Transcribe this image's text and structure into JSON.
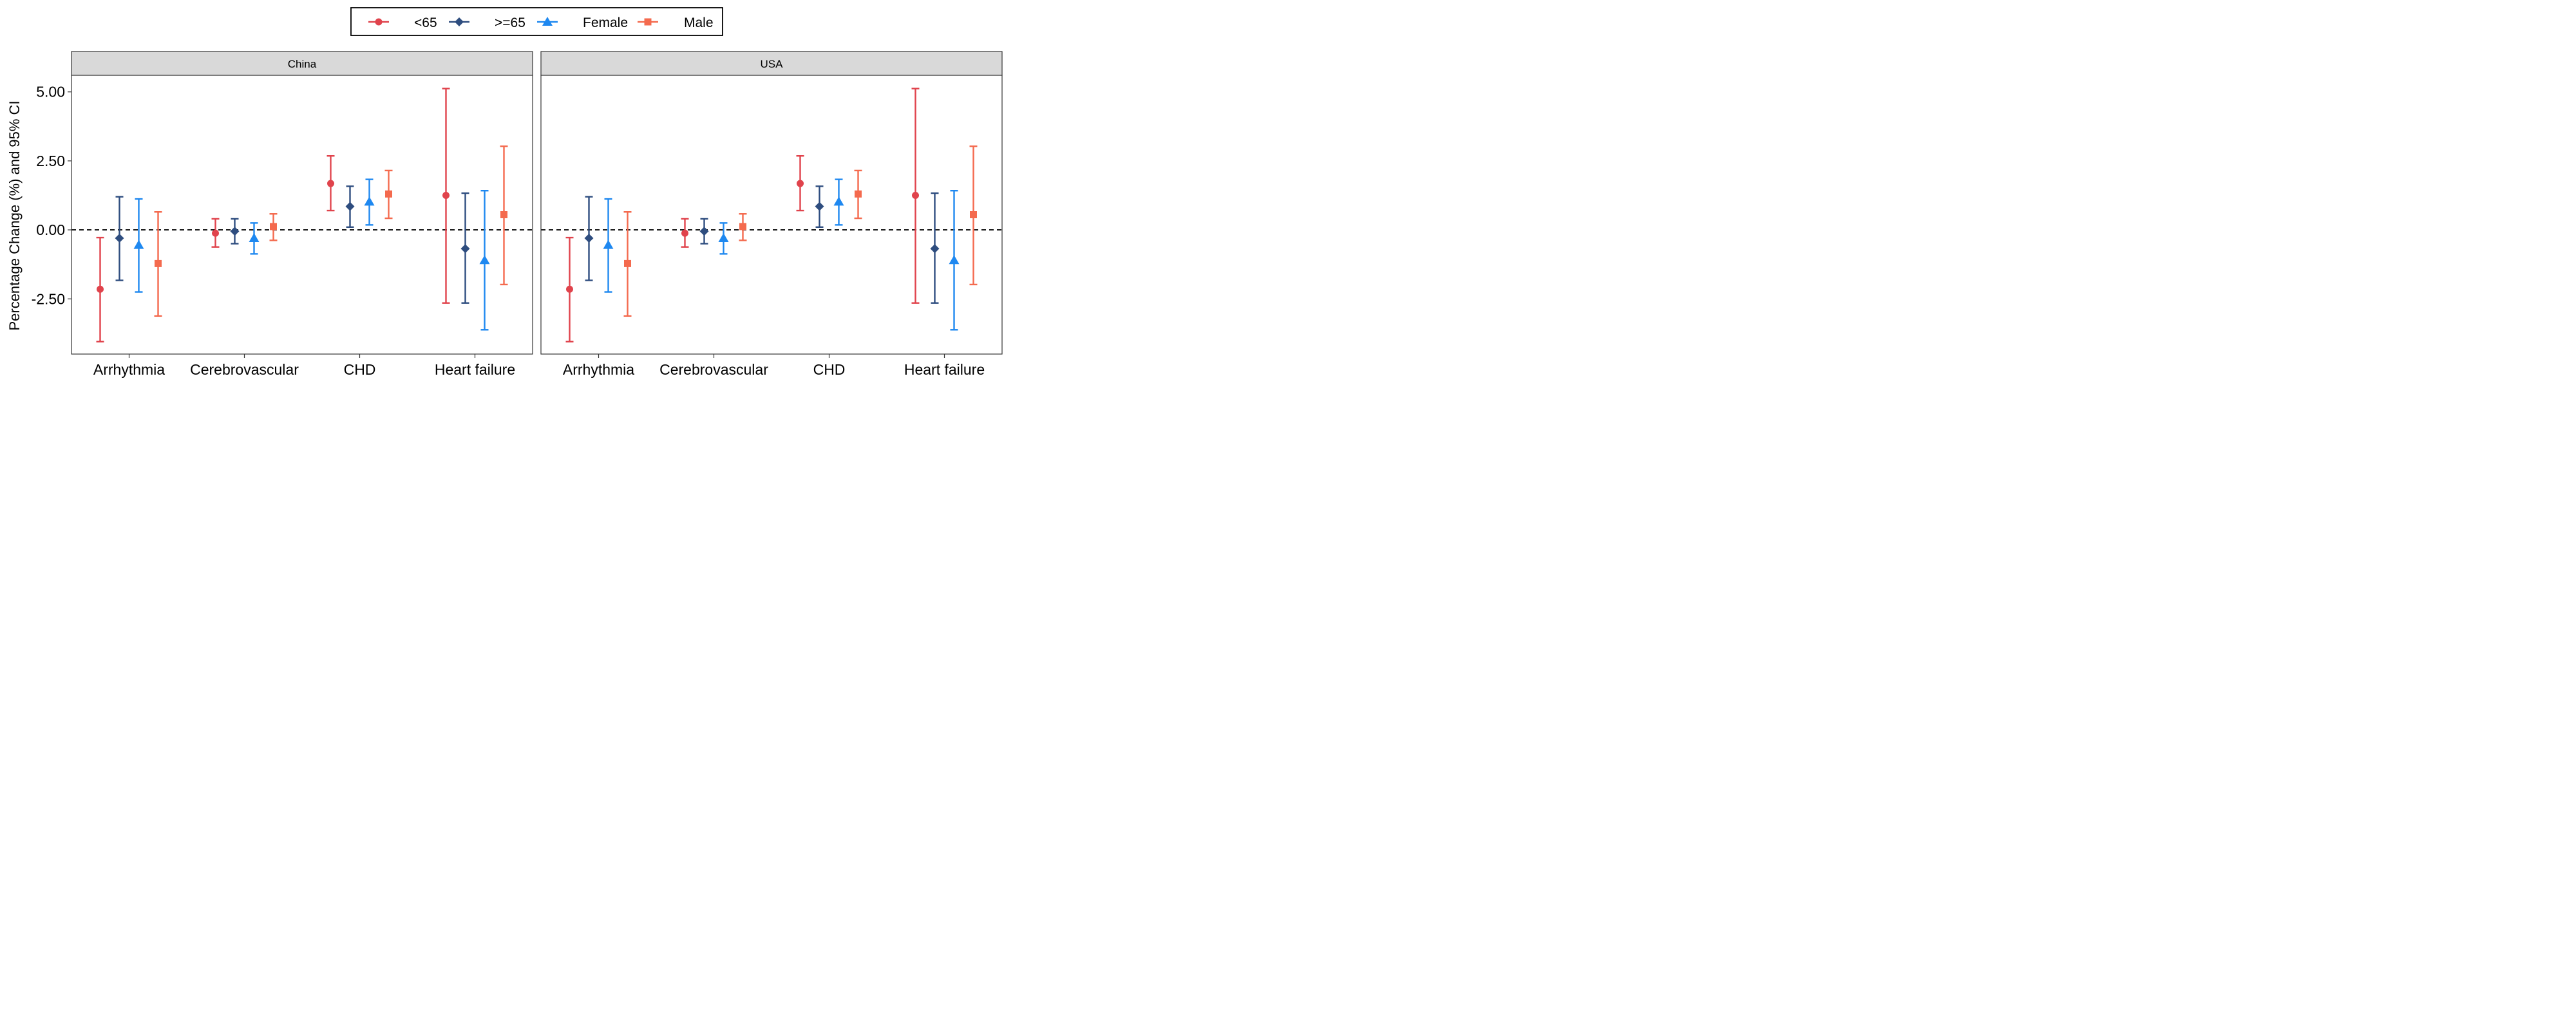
{
  "chart_data": {
    "type": "errorbar",
    "ylabel": "Percentage Change (%) and 95% CI",
    "xlabel": "",
    "ylim": [
      -4.5,
      5.6
    ],
    "yticks": [
      -2.5,
      0,
      2.5,
      5
    ],
    "ytick_labels": [
      "-2.50",
      "0.00",
      "2.50",
      "5.00"
    ],
    "reference_line": 0,
    "legend": {
      "position": "top-center"
    },
    "categories": [
      "Arrhythmia",
      "Cerebrovascular",
      "CHD",
      "Heart failure"
    ],
    "series_order": [
      "<65",
      ">=65",
      "Female",
      "Male"
    ],
    "series_style": {
      "<65": {
        "color": "#E0434C",
        "marker": "circle"
      },
      ">=65": {
        "color": "#2E4D7F",
        "marker": "diamond"
      },
      "Female": {
        "color": "#1E88F0",
        "marker": "triangle"
      },
      "Male": {
        "color": "#F46A4E",
        "marker": "square"
      }
    },
    "panels": [
      {
        "title": "China",
        "series": [
          {
            "name": "<65",
            "estimates": [
              -2.15,
              -0.12,
              1.68,
              1.25
            ],
            "lower": [
              -4.05,
              -0.62,
              0.7,
              -2.65
            ],
            "upper": [
              -0.28,
              0.4,
              2.68,
              5.12
            ]
          },
          {
            "name": ">=65",
            "estimates": [
              -0.3,
              -0.05,
              0.85,
              -0.68
            ],
            "lower": [
              -1.83,
              -0.5,
              0.1,
              -2.65
            ],
            "upper": [
              1.2,
              0.4,
              1.58,
              1.33
            ]
          },
          {
            "name": "Female",
            "estimates": [
              -0.55,
              -0.3,
              1.02,
              -1.1
            ],
            "lower": [
              -2.25,
              -0.87,
              0.18,
              -3.62
            ],
            "upper": [
              1.12,
              0.25,
              1.83,
              1.42
            ]
          },
          {
            "name": "Male",
            "estimates": [
              -1.22,
              0.12,
              1.3,
              0.55
            ],
            "lower": [
              -3.12,
              -0.38,
              0.42,
              -1.98
            ],
            "upper": [
              0.65,
              0.58,
              2.15,
              3.03
            ]
          }
        ]
      },
      {
        "title": "USA",
        "series": [
          {
            "name": "<65",
            "estimates": [
              -2.15,
              -0.12,
              1.68,
              1.25
            ],
            "lower": [
              -4.05,
              -0.62,
              0.7,
              -2.65
            ],
            "upper": [
              -0.28,
              0.4,
              2.68,
              5.12
            ]
          },
          {
            "name": ">=65",
            "estimates": [
              -0.3,
              -0.05,
              0.85,
              -0.68
            ],
            "lower": [
              -1.83,
              -0.5,
              0.1,
              -2.65
            ],
            "upper": [
              1.2,
              0.4,
              1.58,
              1.33
            ]
          },
          {
            "name": "Female",
            "estimates": [
              -0.55,
              -0.3,
              1.02,
              -1.1
            ],
            "lower": [
              -2.25,
              -0.87,
              0.18,
              -3.62
            ],
            "upper": [
              1.12,
              0.25,
              1.83,
              1.42
            ]
          },
          {
            "name": "Male",
            "estimates": [
              -1.22,
              0.12,
              1.3,
              0.55
            ],
            "lower": [
              -3.12,
              -0.38,
              0.42,
              -1.98
            ],
            "upper": [
              0.65,
              0.58,
              2.15,
              3.03
            ]
          }
        ]
      }
    ]
  }
}
